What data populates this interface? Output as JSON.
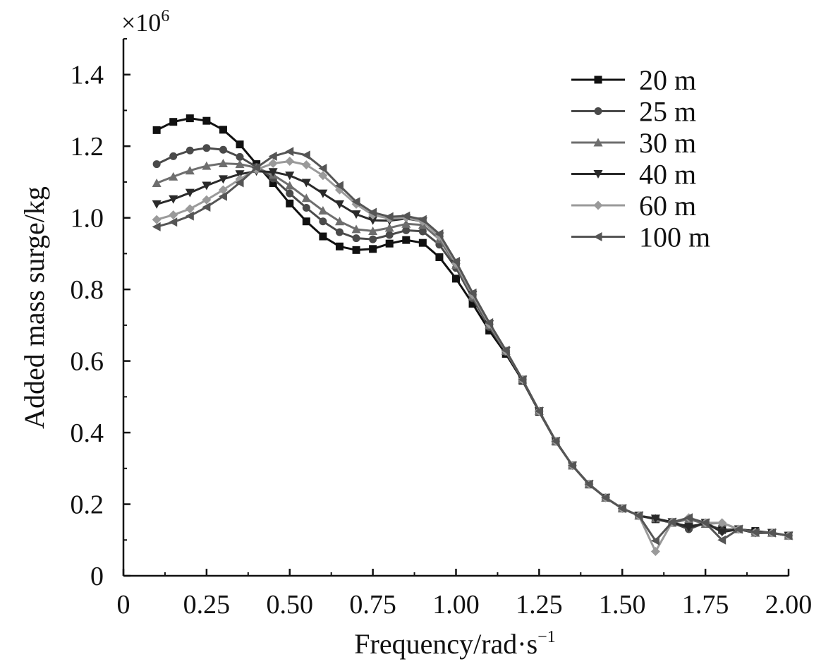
{
  "chart_data": {
    "type": "line",
    "xlabel": "Frequency/rad·s",
    "xlabel_sup": "−1",
    "ylabel": "Added mass surge/kg",
    "y_multiplier": "×10",
    "y_multiplier_sup": "6",
    "xlim": [
      0,
      2.0
    ],
    "ylim": [
      0,
      1.5
    ],
    "x_ticks": [
      0,
      0.25,
      0.5,
      0.75,
      1.0,
      1.25,
      1.5,
      1.75,
      2.0
    ],
    "x_tick_labels": [
      "0",
      "0.25",
      "0.50",
      "0.75",
      "1.00",
      "1.25",
      "1.50",
      "1.75",
      "2.00"
    ],
    "y_ticks": [
      0,
      0.2,
      0.4,
      0.6,
      0.8,
      1.0,
      1.2,
      1.4
    ],
    "y_tick_labels": [
      "0",
      "0.2",
      "0.4",
      "0.6",
      "0.8",
      "1.0",
      "1.2",
      "1.4"
    ],
    "grid": false,
    "legend_position": "top-right",
    "x": [
      0.1,
      0.15,
      0.2,
      0.25,
      0.3,
      0.35,
      0.4,
      0.45,
      0.5,
      0.55,
      0.6,
      0.65,
      0.7,
      0.75,
      0.8,
      0.85,
      0.9,
      0.95,
      1.0,
      1.05,
      1.1,
      1.15,
      1.2,
      1.25,
      1.3,
      1.35,
      1.4,
      1.45,
      1.5,
      1.55,
      1.6,
      1.65,
      1.7,
      1.75,
      1.8,
      1.85,
      1.9,
      1.95,
      2.0
    ],
    "series": [
      {
        "name": "20 m",
        "marker": "square",
        "color": "#111111",
        "values": [
          1.245,
          1.268,
          1.278,
          1.271,
          1.246,
          1.205,
          1.15,
          1.097,
          1.04,
          0.99,
          0.948,
          0.92,
          0.91,
          0.913,
          0.928,
          0.938,
          0.93,
          0.89,
          0.83,
          0.76,
          0.685,
          0.62,
          0.545,
          0.458,
          0.375,
          0.308,
          0.255,
          0.218,
          0.188,
          0.168,
          0.158,
          0.148,
          0.138,
          0.145,
          0.128,
          0.13,
          0.125,
          0.12,
          0.112
        ]
      },
      {
        "name": "25 m",
        "marker": "circle",
        "color": "#4a4a4a",
        "values": [
          1.15,
          1.172,
          1.188,
          1.195,
          1.19,
          1.17,
          1.142,
          1.11,
          1.068,
          1.028,
          0.99,
          0.96,
          0.943,
          0.94,
          0.952,
          0.965,
          0.962,
          0.925,
          0.86,
          0.775,
          0.695,
          0.625,
          0.548,
          0.46,
          0.376,
          0.308,
          0.256,
          0.218,
          0.188,
          0.168,
          0.16,
          0.148,
          0.13,
          0.148,
          0.125,
          0.13,
          0.12,
          0.12,
          0.112
        ]
      },
      {
        "name": "30 m",
        "marker": "triangle-up",
        "color": "#6e6e6e",
        "values": [
          1.097,
          1.115,
          1.132,
          1.145,
          1.152,
          1.15,
          1.14,
          1.12,
          1.09,
          1.055,
          1.02,
          0.99,
          0.968,
          0.963,
          0.972,
          0.983,
          0.98,
          0.94,
          0.868,
          0.78,
          0.7,
          0.628,
          0.548,
          0.46,
          0.376,
          0.308,
          0.256,
          0.218,
          0.188,
          0.168,
          0.16,
          0.148,
          0.158,
          0.145,
          0.148,
          0.13,
          0.12,
          0.12,
          0.112
        ]
      },
      {
        "name": "40 m",
        "marker": "triangle-down",
        "color": "#2a2a2a",
        "values": [
          1.038,
          1.052,
          1.07,
          1.09,
          1.108,
          1.122,
          1.13,
          1.128,
          1.118,
          1.098,
          1.068,
          1.038,
          1.01,
          0.993,
          0.992,
          0.998,
          0.99,
          0.948,
          0.872,
          0.785,
          0.703,
          0.628,
          0.548,
          0.46,
          0.376,
          0.308,
          0.256,
          0.218,
          0.188,
          0.168,
          0.16,
          0.15,
          0.135,
          0.148,
          0.122,
          0.13,
          0.12,
          0.12,
          0.112
        ]
      },
      {
        "name": "60 m",
        "marker": "diamond",
        "color": "#9a9a9a",
        "values": [
          0.995,
          1.008,
          1.025,
          1.05,
          1.078,
          1.108,
          1.135,
          1.152,
          1.158,
          1.148,
          1.118,
          1.078,
          1.038,
          1.008,
          0.998,
          1.0,
          0.99,
          0.948,
          0.872,
          0.785,
          0.703,
          0.628,
          0.548,
          0.46,
          0.376,
          0.308,
          0.256,
          0.218,
          0.188,
          0.168,
          0.068,
          0.15,
          0.162,
          0.148,
          0.148,
          0.13,
          0.122,
          0.12,
          0.112
        ]
      },
      {
        "name": "100 m",
        "marker": "triangle-left",
        "color": "#555555",
        "values": [
          0.975,
          0.988,
          1.005,
          1.03,
          1.06,
          1.098,
          1.14,
          1.172,
          1.185,
          1.175,
          1.138,
          1.09,
          1.045,
          1.015,
          1.003,
          1.005,
          0.995,
          0.955,
          0.878,
          0.79,
          0.707,
          0.63,
          0.548,
          0.46,
          0.376,
          0.308,
          0.256,
          0.218,
          0.188,
          0.168,
          0.098,
          0.15,
          0.162,
          0.148,
          0.1,
          0.13,
          0.122,
          0.12,
          0.112
        ]
      }
    ]
  }
}
